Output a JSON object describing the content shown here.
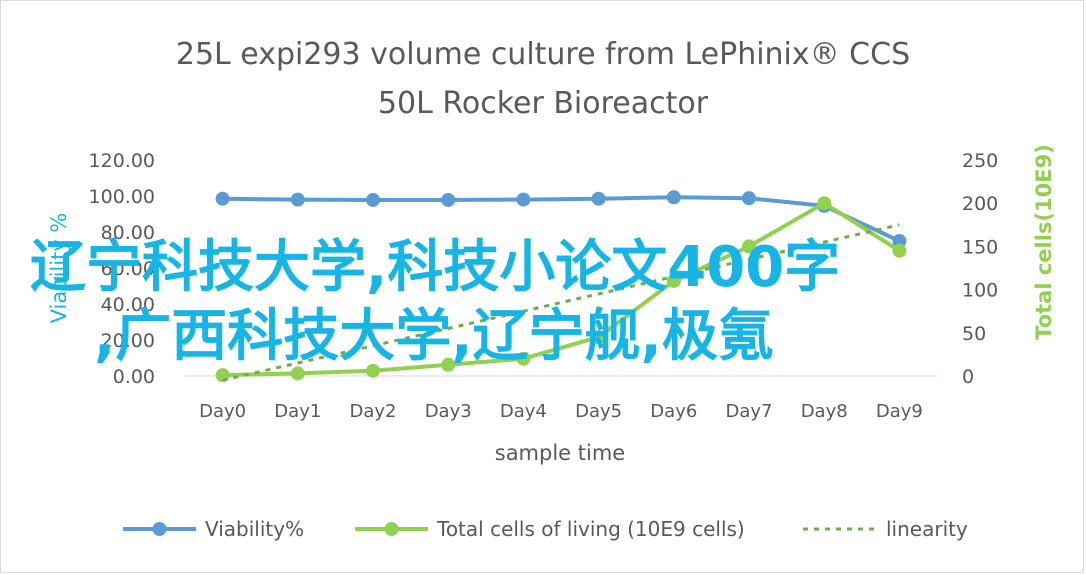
{
  "chart_data": {
    "type": "line",
    "title_line1": "25L  expi293 volume culture  from LePhinix® CCS",
    "title_line2": "50L Rocker Bioreactor",
    "xlabel": "sample  time",
    "ylabel_left": "Viability %",
    "ylabel_right": "Total cells(10E9)",
    "categories": [
      "Day0",
      "Day1",
      "Day2",
      "Day3",
      "Day4",
      "Day5",
      "Day6",
      "Day7",
      "Day8",
      "Day9"
    ],
    "y_left": {
      "min": 0,
      "max": 120,
      "ticks": [
        "0.00",
        "20.00",
        "40.00",
        "60.00",
        "80.00",
        "100.00",
        "120.00"
      ]
    },
    "y_right": {
      "min": 0,
      "max": 250,
      "ticks": [
        "0",
        "50",
        "100",
        "150",
        "200",
        "250"
      ]
    },
    "series": [
      {
        "name": "Viability%",
        "axis": "left",
        "color": "#5b9bd5",
        "style": "line-marker",
        "values": [
          98.5,
          98.0,
          97.8,
          97.8,
          98.0,
          98.5,
          99.3,
          98.8,
          94.5,
          75.0
        ]
      },
      {
        "name": "Total cells of living (10E9 cells)",
        "axis": "right",
        "color": "#92d050",
        "style": "line-marker",
        "values": [
          1,
          3,
          6,
          13,
          20,
          45,
          110,
          150,
          200,
          145
        ]
      },
      {
        "name": "linearity",
        "axis": "right",
        "color": "#70ad47",
        "style": "dashed",
        "values": [
          -5,
          15,
          35,
          55,
          75,
          95,
          115,
          135,
          155,
          175
        ]
      }
    ],
    "legend_position": "bottom",
    "grid": false
  },
  "overlay": {
    "line1": "辽宁科技大学,科技小论文400字",
    "line2": ",广西科技大学,辽宁舰,极氪",
    "color": "#17b5e6"
  }
}
